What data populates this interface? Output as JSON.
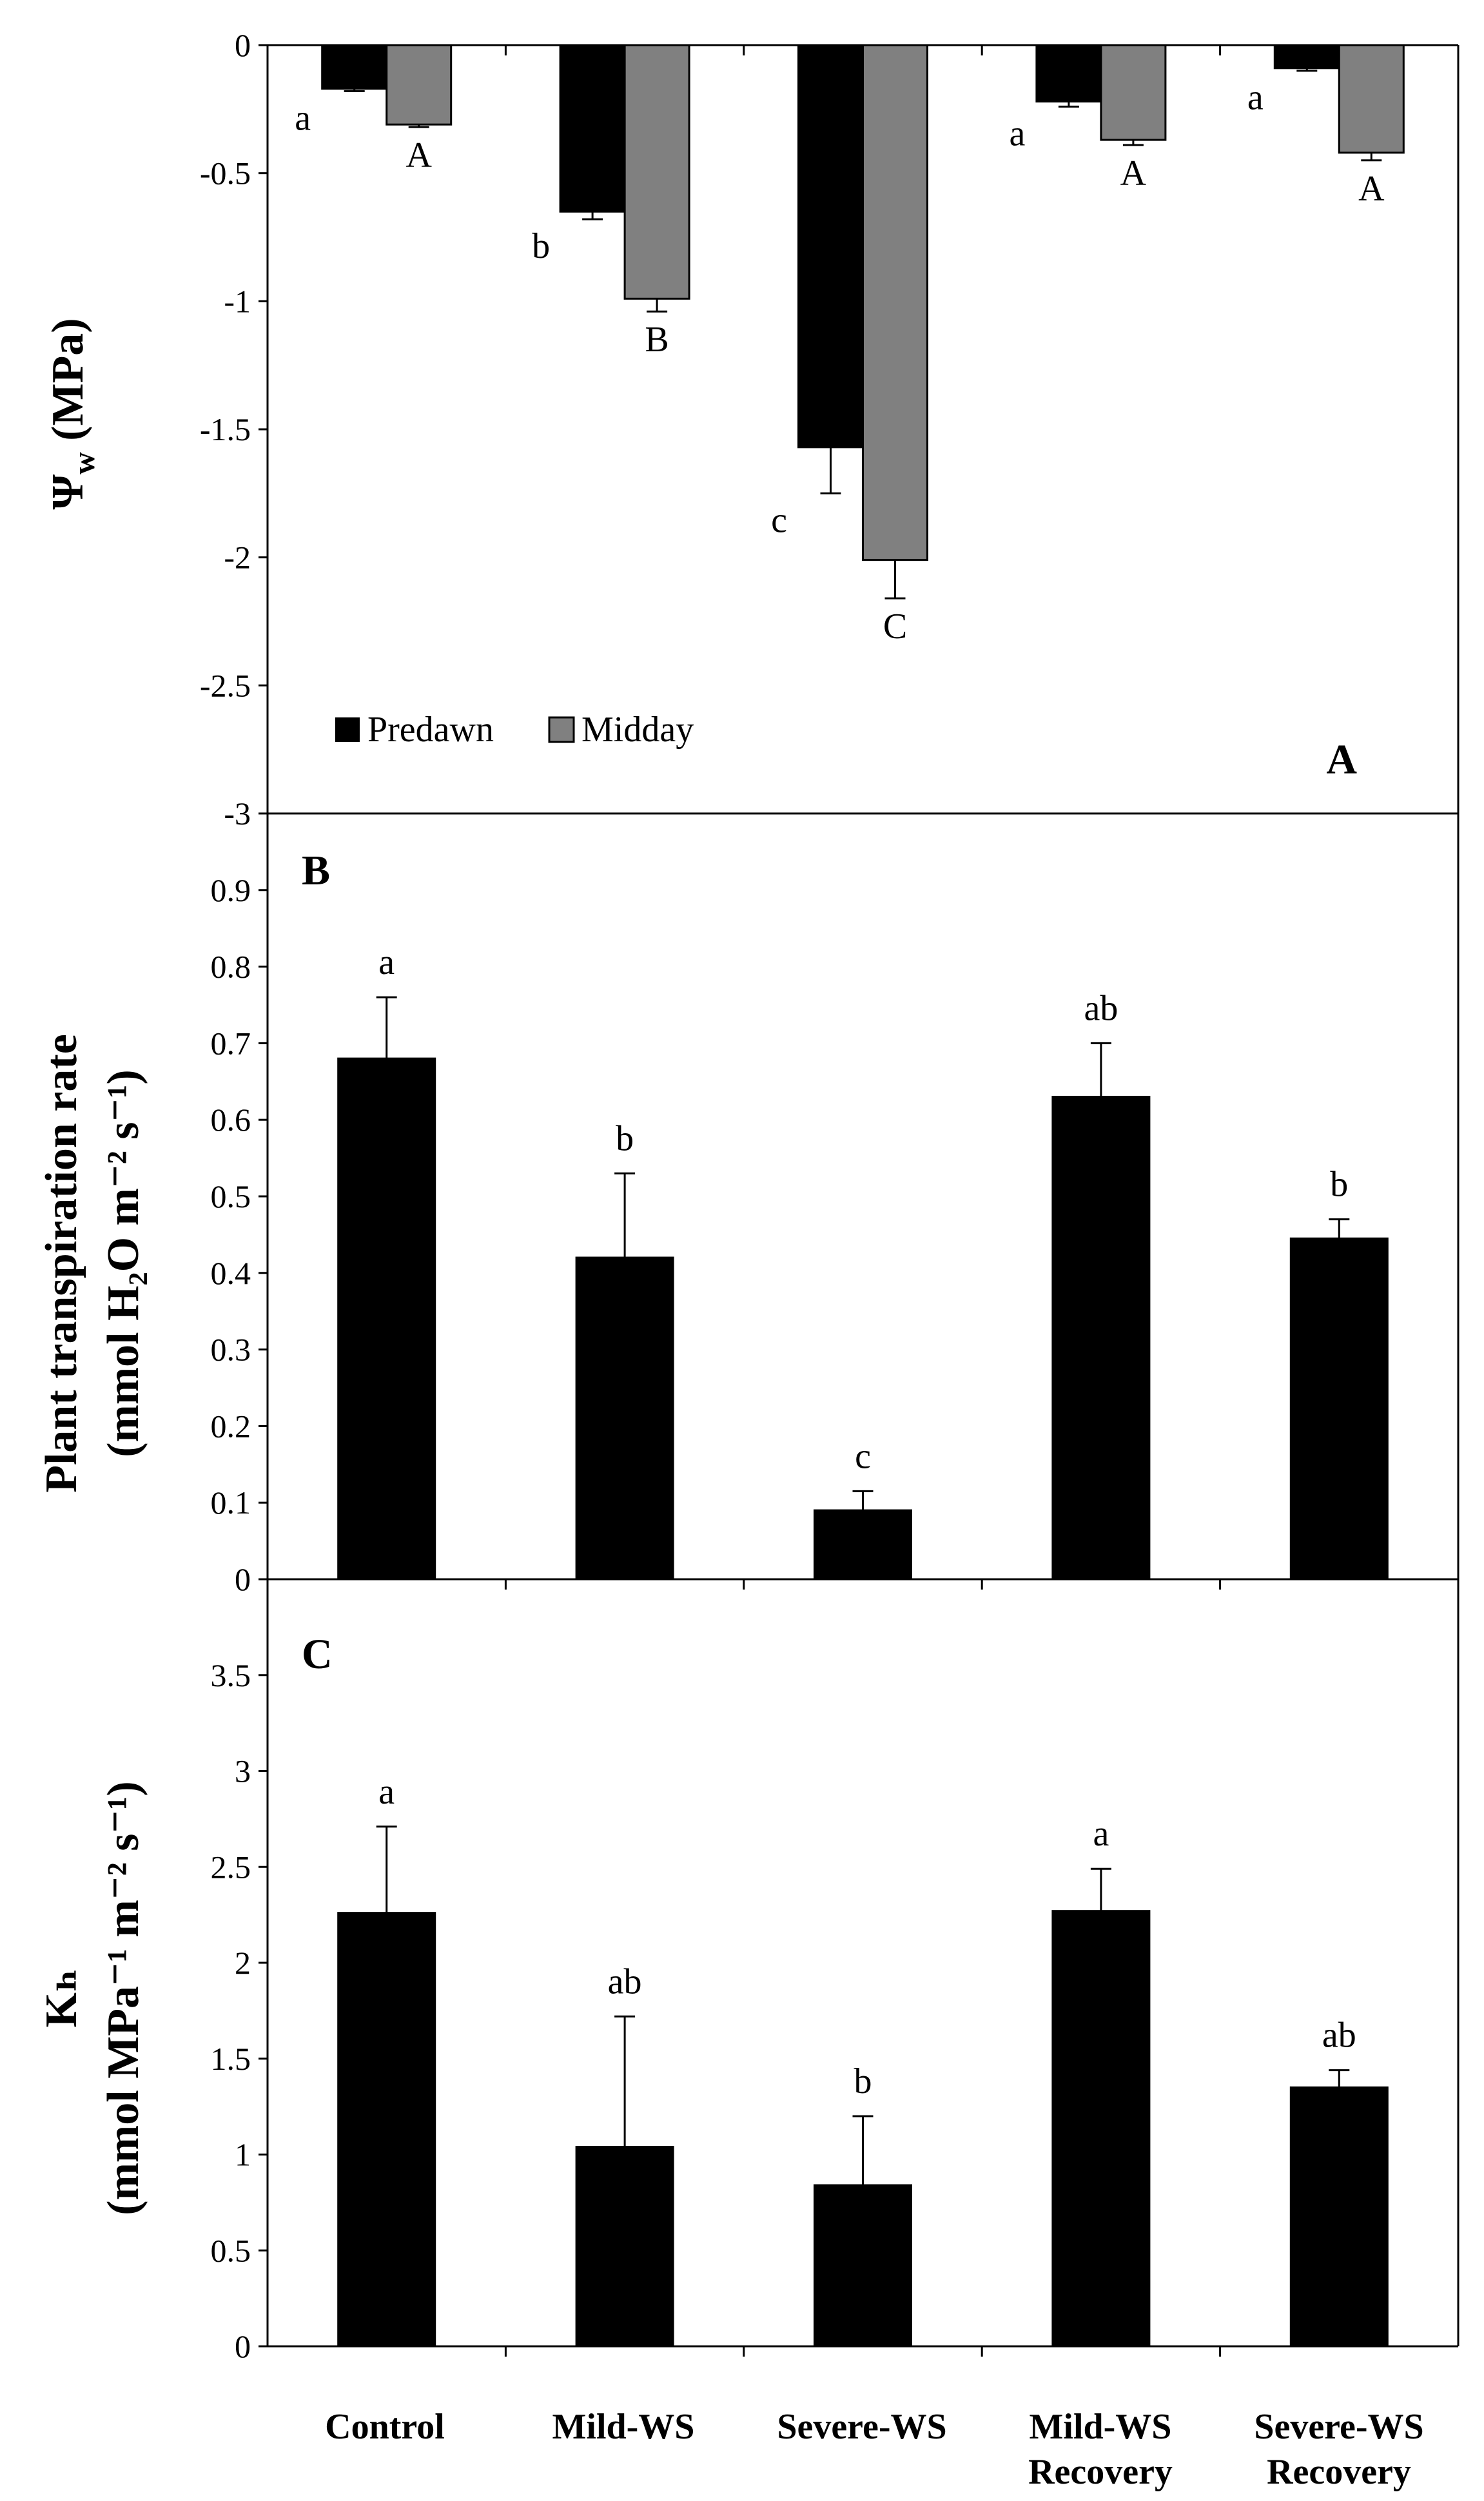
{
  "chart_data": [
    {
      "panel": "A",
      "type": "bar",
      "title": "",
      "ylabel": {
        "main": "Ψ",
        "sub": "w",
        "rest": " (MPa)"
      },
      "ylim": [
        -3,
        0
      ],
      "yticks": [
        0,
        -0.5,
        -1,
        -1.5,
        -2,
        -2.5,
        -3
      ],
      "ytick_labels": [
        "0",
        "-0.5",
        "-1",
        "-1.5",
        "-2",
        "-2.5",
        "-3"
      ],
      "categories": [
        "Control",
        "Mild-WS",
        "Severe-WS",
        "Mild-WS Recovery",
        "Severe-WS Recovery"
      ],
      "legend": {
        "placement": "bottom-left",
        "entries": [
          "Predawn",
          "Midday"
        ]
      },
      "series": [
        {
          "name": "Predawn",
          "color": "#000000",
          "values": [
            -0.17,
            -0.65,
            -1.57,
            -0.22,
            -0.09
          ],
          "errors": [
            0.01,
            0.03,
            0.18,
            0.02,
            0.01
          ],
          "letters": [
            "a",
            "b",
            "c",
            "a",
            "a"
          ]
        },
        {
          "name": "Midday",
          "color": "#808080",
          "values": [
            -0.31,
            -0.99,
            -2.01,
            -0.37,
            -0.42
          ],
          "errors": [
            0.01,
            0.05,
            0.15,
            0.02,
            0.03
          ],
          "letters": [
            "A",
            "B",
            "C",
            "A",
            "A"
          ]
        }
      ]
    },
    {
      "panel": "B",
      "type": "bar",
      "title": "",
      "ylabel": {
        "line1": "Plant transpiration rate",
        "line2": "(mmol H₂O m⁻² s⁻¹)"
      },
      "ylim": [
        0,
        1
      ],
      "yticks": [
        0,
        0.1,
        0.2,
        0.3,
        0.4,
        0.5,
        0.6,
        0.7,
        0.8,
        0.9
      ],
      "ytick_labels": [
        "0",
        "0.1",
        "0.2",
        "0.3",
        "0.4",
        "0.5",
        "0.6",
        "0.7",
        "0.8",
        "0.9"
      ],
      "categories": [
        "Control",
        "Mild-WS",
        "Severe-WS",
        "Mild-WS Recovery",
        "Severe-WS Recovery"
      ],
      "values": [
        0.68,
        0.42,
        0.09,
        0.63,
        0.445
      ],
      "errors": [
        0.08,
        0.11,
        0.025,
        0.07,
        0.025
      ],
      "letters": [
        "a",
        "b",
        "c",
        "ab",
        "b"
      ],
      "color": "#000000"
    },
    {
      "panel": "C",
      "type": "bar",
      "title": "",
      "ylabel": {
        "line1": "Kₕ",
        "line2": "(mmol MPa⁻¹ m⁻² s⁻¹)"
      },
      "ylim": [
        0,
        4
      ],
      "yticks": [
        0,
        0.5,
        1,
        1.5,
        2,
        2.5,
        3,
        3.5
      ],
      "ytick_labels": [
        "0",
        "0.5",
        "1",
        "1.5",
        "2",
        "2.5",
        "3",
        "3.5"
      ],
      "categories": [
        "Control",
        "Mild-WS",
        "Severe-WS",
        "Mild-WS Recovery",
        "Severe-WS Recovery"
      ],
      "values": [
        2.26,
        1.04,
        0.84,
        2.27,
        1.35
      ],
      "errors": [
        0.45,
        0.68,
        0.36,
        0.22,
        0.09
      ],
      "letters": [
        "a",
        "ab",
        "b",
        "a",
        "ab"
      ],
      "color": "#000000"
    }
  ],
  "xaxis": {
    "categories": [
      {
        "line1": "Control",
        "line2": ""
      },
      {
        "line1": "Mild-WS",
        "line2": ""
      },
      {
        "line1": "Severe-WS",
        "line2": ""
      },
      {
        "line1": "Mild-WS",
        "line2": "Recovery"
      },
      {
        "line1": "Severe-WS",
        "line2": "Recovery"
      }
    ]
  }
}
